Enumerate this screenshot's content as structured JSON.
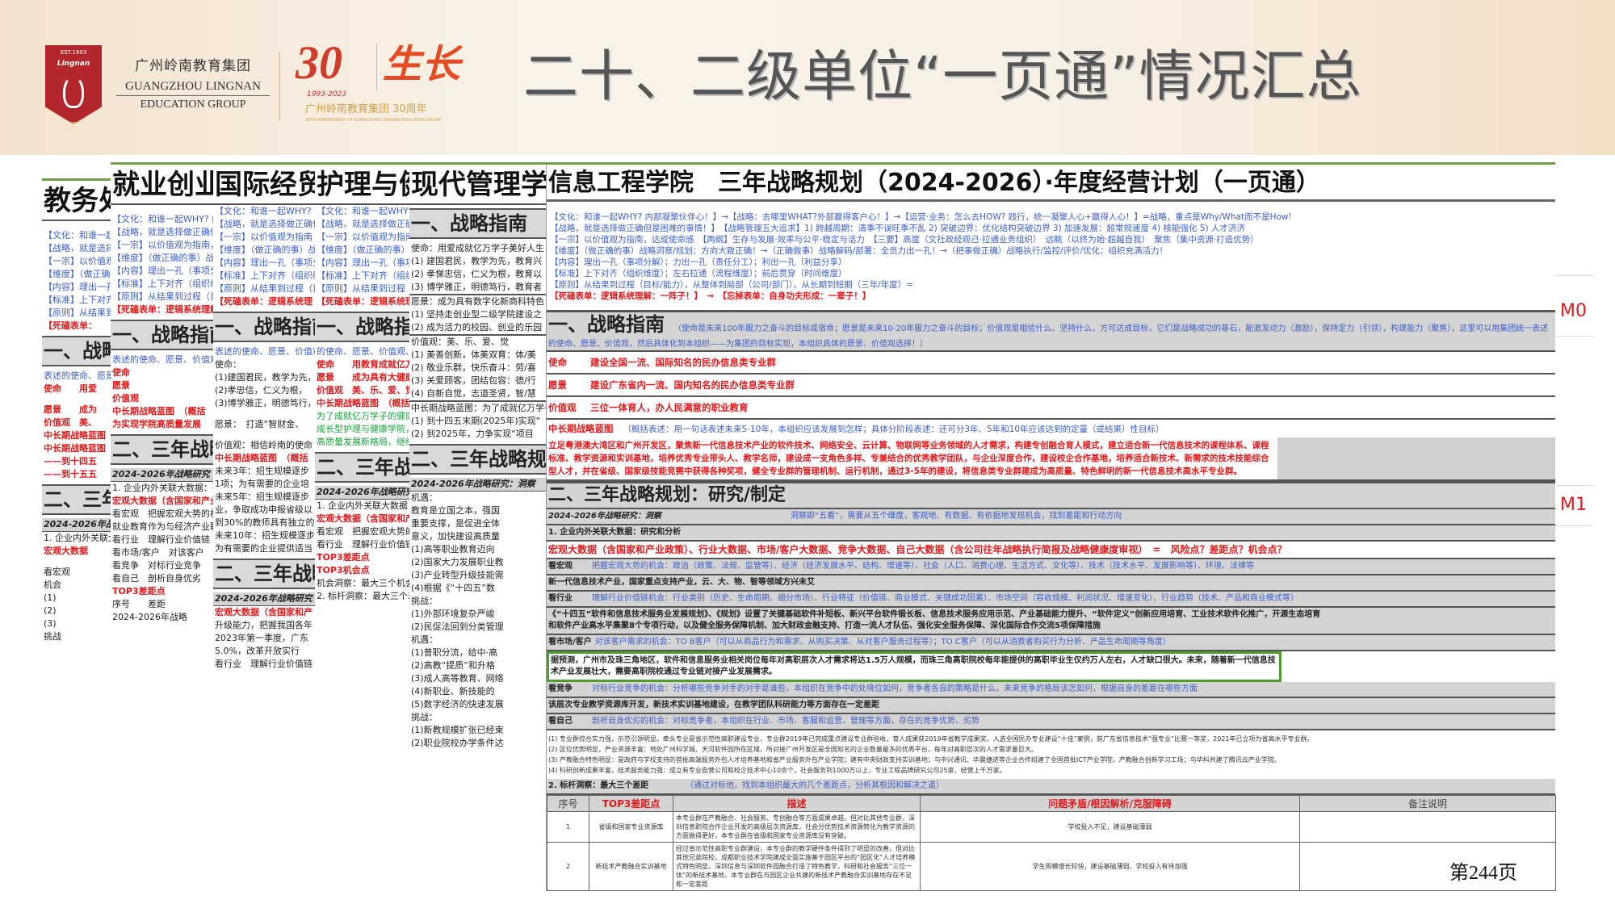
{
  "header": {
    "logo": {
      "est": "EST.1993",
      "name": "Lingnan"
    },
    "group_cn": "广州岭南教育集团",
    "group_en1": "GUANGZHOU LINGNAN",
    "group_en2": "EDUCATION GROUP",
    "anniv": {
      "num": "30",
      "years": "1993-2023",
      "glyph": "生长",
      "caption": "广州岭南教育集团 30周年",
      "caption_en": "30TH ANNIVERSARY OF GUANGZHOU LINGNAN EDUCATION GROUP"
    },
    "title": "二十、二级单位“一页通”情况汇总",
    "colors": {
      "brand_red": "#b3262b",
      "gold": "#c9a24f",
      "title_gray": "#555555"
    }
  },
  "panels": [
    {
      "title": "教务处",
      "lines": [
        {
          "c": "gap",
          "t": ""
        },
        {
          "c": "blue",
          "t": "【文化：和谁一起WHY?"
        },
        {
          "c": "blue",
          "t": "【战略，就是选择做正确"
        },
        {
          "c": "blue",
          "t": "【一宗】以价值观为指南"
        },
        {
          "c": "blue",
          "t": "【维度】（做正确的事）"
        },
        {
          "c": "blue",
          "t": "【内容】理出一孔"
        },
        {
          "c": "blue",
          "t": "【标准】上下对齐"
        },
        {
          "c": "blue",
          "t": "【原则】从结果到过程"
        },
        {
          "c": "red",
          "t": "【死磕表单："
        },
        {
          "c": "head",
          "t": "一、战略指南"
        },
        {
          "c": "blue",
          "t": "表述的使命、愿景"
        },
        {
          "c": "red",
          "t": "使命　　用爱"
        },
        {
          "c": "gap",
          "t": ""
        },
        {
          "c": "red",
          "t": "愿景　　成为"
        },
        {
          "c": "red",
          "t": "价值观　美、"
        },
        {
          "c": "red",
          "t": "中长期战略蓝图"
        },
        {
          "c": "red",
          "t": "中长期战略蓝图"
        },
        {
          "c": "red",
          "t": "——到十四五"
        },
        {
          "c": "red",
          "t": "——到十五五"
        },
        {
          "c": "head",
          "t": "二、三年战略"
        },
        {
          "c": "sub",
          "t": "2024-2026年战略研究"
        },
        {
          "c": "black",
          "t": "1. 企业内外关联大数据"
        },
        {
          "c": "red",
          "t": "宏观大数据"
        },
        {
          "c": "gap",
          "t": ""
        },
        {
          "c": "black",
          "t": "看宏观"
        },
        {
          "c": "black",
          "t": "机会"
        },
        {
          "c": "black",
          "t": "(1)"
        },
        {
          "c": "black",
          "t": "(2)"
        },
        {
          "c": "black",
          "t": "(3)"
        },
        {
          "c": "black",
          "t": "挑战"
        }
      ]
    },
    {
      "title": "就业创业学院",
      "lines": [
        {
          "c": "gap",
          "t": ""
        },
        {
          "c": "blue",
          "t": "【文化：和谁一起WHY? 内部凝聚伙伴心"
        },
        {
          "c": "blue",
          "t": "【战略，就是选择做正确但是困难的事"
        },
        {
          "c": "blue",
          "t": "【一宗】以价值观为指南，达成使命感"
        },
        {
          "c": "blue",
          "t": "【维度】（做正确的事）战略洞察"
        },
        {
          "c": "blue",
          "t": "【内容】理出一孔（事项分解）"
        },
        {
          "c": "blue",
          "t": "【标准】上下对齐（组织维度）"
        },
        {
          "c": "blue",
          "t": "【原则】从结果到过程（目标/能力）"
        },
        {
          "c": "red",
          "t": "【死磕表单：逻辑系统理解"
        },
        {
          "c": "head",
          "t": "一、战略指南"
        },
        {
          "c": "blue",
          "t": "表述的使命、愿景、价值观"
        },
        {
          "c": "red",
          "t": "使命"
        },
        {
          "c": "red",
          "t": "愿景"
        },
        {
          "c": "red",
          "t": "价值观"
        },
        {
          "c": "red",
          "t": "中长期战略蓝图　（概括"
        },
        {
          "c": "red",
          "t": "为实现学院高质量发展"
        },
        {
          "c": "head",
          "t": "二、三年战略"
        },
        {
          "c": "sub",
          "t": "2024-2026年战略研究"
        },
        {
          "c": "black",
          "t": "1. 企业内外关联大数据：研究"
        },
        {
          "c": "red",
          "t": "宏观大数据（含国家和产业"
        },
        {
          "c": "black",
          "t": "看宏观　把握宏观大势的机会"
        },
        {
          "c": "black",
          "t": "就业教育作为与经济产业联合"
        },
        {
          "c": "black",
          "t": "看行业　理解行业价值链"
        },
        {
          "c": "black",
          "t": "看市场/客户　对该客户"
        },
        {
          "c": "black",
          "t": "看竞争　对标行业竞争"
        },
        {
          "c": "black",
          "t": "看自己　剖析自身优劣"
        },
        {
          "c": "red",
          "t": "TOP3差距点"
        },
        {
          "c": "black",
          "t": "序号　　差距"
        },
        {
          "c": "black",
          "t": "2024-2026年战略"
        }
      ]
    },
    {
      "title": "国际经贸学院",
      "lines": [
        {
          "c": "blue",
          "t": "【文化：和谁一起WHY? 内"
        },
        {
          "c": "blue",
          "t": "【战略，就是选择做正确但"
        },
        {
          "c": "blue",
          "t": "【一宗】以价值观为指南"
        },
        {
          "c": "blue",
          "t": "【维度】（做正确的事）战"
        },
        {
          "c": "blue",
          "t": "【内容】理出一孔（事项分"
        },
        {
          "c": "blue",
          "t": "【标准】上下对齐（组织维"
        },
        {
          "c": "blue",
          "t": "【原则】从结果到过程（目"
        },
        {
          "c": "red",
          "t": "【死磕表单：逻辑系统理"
        },
        {
          "c": "head",
          "t": "一、战略指南"
        },
        {
          "c": "blue",
          "t": "表述的使命、愿景、价值观"
        },
        {
          "c": "black",
          "t": "使命："
        },
        {
          "c": "black",
          "t": "(1)建国君民，教学为先，"
        },
        {
          "c": "black",
          "t": "(2)孝忠信，仁义为根，"
        },
        {
          "c": "black",
          "t": "(3)博学雅正，明德笃行，"
        },
        {
          "c": "gap",
          "t": ""
        },
        {
          "c": "black",
          "t": "愿景：　打造“智财金、"
        },
        {
          "c": "gap",
          "t": ""
        },
        {
          "c": "black",
          "t": "价值观：相信岭南的使命"
        },
        {
          "c": "red",
          "t": "中长期战略蓝图　（概括"
        },
        {
          "c": "black",
          "t": "未来3年：招生规模逐步"
        },
        {
          "c": "black",
          "t": "1项；为有需要的企业培"
        },
        {
          "c": "black",
          "t": "未来5年：招生规模逐步"
        },
        {
          "c": "black",
          "t": "业，争取成功申报省级以"
        },
        {
          "c": "black",
          "t": "到30%的教师具有独立的"
        },
        {
          "c": "black",
          "t": "未来10年：招生规模逐步"
        },
        {
          "c": "black",
          "t": "为有需要的企业提供适当"
        },
        {
          "c": "head",
          "t": "二、三年战略"
        },
        {
          "c": "sub",
          "t": "2024-2026年战略研究"
        },
        {
          "c": "red",
          "t": "宏观大数据（含国家和产"
        },
        {
          "c": "black",
          "t": "升级能力，把握我国各年"
        },
        {
          "c": "black",
          "t": "2023年第一季度，广东"
        },
        {
          "c": "black",
          "t": "5.0%，改革开放实行"
        },
        {
          "c": "black",
          "t": "看行业　理解行业价值链"
        }
      ]
    },
    {
      "title": "护理与健康学院",
      "lines": [
        {
          "c": "blue",
          "t": "【文化：和谁一起WHY? 内部凝聚"
        },
        {
          "c": "blue",
          "t": "【战略，就是选择做正确但是困难"
        },
        {
          "c": "blue",
          "t": "【一宗】以价值观为指南，达成使命"
        },
        {
          "c": "blue",
          "t": "【维度】（做正确的事）战略洞察"
        },
        {
          "c": "blue",
          "t": "【内容】理出一孔（事项分解）"
        },
        {
          "c": "blue",
          "t": "【标准】上下对齐（组织维度）"
        },
        {
          "c": "blue",
          "t": "【原则】从结果到过程（目标/能力）"
        },
        {
          "c": "red",
          "t": "【死磕表单：逻辑系统理解"
        },
        {
          "c": "head",
          "t": "一、战略指南"
        },
        {
          "c": "blue",
          "t": "的使命、愿景、价值观、然后具体"
        },
        {
          "c": "red",
          "t": "使命　　用教育成就亿万学子"
        },
        {
          "c": "red",
          "t": "愿景　　成为具有大健康特色"
        },
        {
          "c": "red",
          "t": "价值观　美、乐、爱、觉"
        },
        {
          "c": "red",
          "t": "中长期战略蓝图　（概括表述"
        },
        {
          "c": "green",
          "t": "为了成就亿万学子的健康人生"
        },
        {
          "c": "green",
          "t": "成长型护理与健康学院，到十"
        },
        {
          "c": "green",
          "t": "高质量发展新格局，继续扩大"
        },
        {
          "c": "head",
          "t": "二、三年战略规划"
        },
        {
          "c": "sub",
          "t": "2024-2026年战略研究：洞察"
        },
        {
          "c": "black",
          "t": "1. 企业内外关联大数据：研究和分析"
        },
        {
          "c": "red",
          "t": "宏观大数据（含国家和产业政策"
        },
        {
          "c": "black",
          "t": "看宏观　把握宏观大势的机会"
        },
        {
          "c": "black",
          "t": "看行业　理解行业价值链"
        },
        {
          "c": "red",
          "t": "TOP3差距点"
        },
        {
          "c": "red",
          "t": "TOP3机会点"
        },
        {
          "c": "black",
          "t": "机会洞察：最大三个机会"
        },
        {
          "c": "black",
          "t": "2. 标杆洞察：最大三个差距"
        }
      ]
    },
    {
      "title": "现代管理学院",
      "lines": [
        {
          "c": "head",
          "t": "一、战略指南"
        },
        {
          "c": "black",
          "t": "使命：用爱成就亿万学子美好人生"
        },
        {
          "c": "black",
          "t": "(1) 建国君民，教学为先，教育兴"
        },
        {
          "c": "black",
          "t": "(2) 孝悌忠信，仁义为根，教育以"
        },
        {
          "c": "black",
          "t": "(3) 博学雅正，明德笃行，教育者"
        },
        {
          "c": "rule",
          "t": ""
        },
        {
          "c": "black",
          "t": "愿景：成为具有数字化新商科特色"
        },
        {
          "c": "black",
          "t": "(1) 坚持走创业型二级学院建设之"
        },
        {
          "c": "black",
          "t": "(2) 成为活力的校园、创业的乐园"
        },
        {
          "c": "rule",
          "t": ""
        },
        {
          "c": "black",
          "t": "价值观：美、乐、爱、觉"
        },
        {
          "c": "black",
          "t": "(1) 美善创新，体美双育：体/美"
        },
        {
          "c": "black",
          "t": "(2) 敬业乐群，快乐奋斗：劳/喜"
        },
        {
          "c": "black",
          "t": "(3) 关爱顾客，团结包容：德/行"
        },
        {
          "c": "black",
          "t": "(4) 自新自觉，志道圣贤，智/慧"
        },
        {
          "c": "rule",
          "t": ""
        },
        {
          "c": "black",
          "t": "中长期战略蓝图：为了成就亿万学子"
        },
        {
          "c": "black",
          "t": "(1) 到十四五末期(2025年)实现“"
        },
        {
          "c": "black",
          "t": "(2) 到2025年，力争实现“项目"
        },
        {
          "c": "head",
          "t": "二、三年战略规划"
        },
        {
          "c": "sub",
          "t": "2024-2026年战略研究：洞察"
        },
        {
          "c": "black",
          "t": "机遇："
        },
        {
          "c": "black",
          "t": "教育是立国之本，强国"
        },
        {
          "c": "black",
          "t": "重要支撑，是促进全体"
        },
        {
          "c": "black",
          "t": "意义，加快建设高质量"
        },
        {
          "c": "black",
          "t": "(1)高等职业教育迈向"
        },
        {
          "c": "black",
          "t": "(2)国家大力发展职业教"
        },
        {
          "c": "black",
          "t": "(3)产业转型升级技能需"
        },
        {
          "c": "black",
          "t": "(4)根据《“十四五”数"
        },
        {
          "c": "black",
          "t": "挑战："
        },
        {
          "c": "black",
          "t": "(1)外部环境复杂严峻"
        },
        {
          "c": "black",
          "t": "(2)民促法回到分类管理"
        },
        {
          "c": "black",
          "t": "机遇："
        },
        {
          "c": "black",
          "t": "(1)普职分流，给中·高"
        },
        {
          "c": "black",
          "t": "(2)高教“提质”和升格"
        },
        {
          "c": "black",
          "t": "(3)成人高等教育、网络"
        },
        {
          "c": "black",
          "t": "(4)新职业、新技能的"
        },
        {
          "c": "black",
          "t": "(5)数字经济的快速发展"
        },
        {
          "c": "black",
          "t": "挑战："
        },
        {
          "c": "black",
          "t": "(1)新教规模扩张已经束"
        },
        {
          "c": "black",
          "t": "(2)职业院校办学条件达"
        }
      ]
    }
  ],
  "doc": {
    "title": "信息工程学院　三年战略规划（2024-2026）·年度经营计划（一页通）",
    "preface": [
      {
        "c": "blue",
        "t": "【文化：和谁一起WHY? 内部凝聚伙伴心！】→【战略：去哪里WHAT?外部赢得客户心！】→【运营·业务：怎么去HOW? 践行，统一凝聚人心+赢得人心！】=战略，重点是Why/What而不是How!"
      },
      {
        "c": "blue",
        "t": "【战略，就是选择做正确但是困难的事情！】　【战略管理五大追求】1) 跨越周期：清季不误旺季不乱 2) 突破边界：优化结构突破边界 3) 加速发展：超常规速度 4) 核能强化 5) 人才济济"
      },
      {
        "c": "blue",
        "t": "【一宗】以价值观为指南，达成使命感　【两纲】生存与发展·效率与公平·稳定与活力　【三要】高度（文社政经观己·拉通业务组织）　远眺（以终为始·超越自我）　聚焦（集中资源·打造优势）"
      },
      {
        "c": "blue",
        "t": "【维度】（做正确的事）战略洞察/规划：方向大致正确！→（正确做事）战略解码/部署：全员力出一孔！→（把事做正确）战略执行/监控/评价/优化：组织充满活力！"
      },
      {
        "c": "blue",
        "t": "【内容】理出一孔（事项分解）；力出一孔（责任分工）；利出一孔（利益分享）"
      },
      {
        "c": "blue",
        "t": "【标准】上下对齐（组织维度）；左右拉通（流程维度）；前后贯穿（时间维度）"
      },
      {
        "c": "blue",
        "t": "【原则】从结果到过程（目标/能力），从整体到局部（公司/部门），从长期到短期（三年/年度）="
      },
      {
        "c": "red",
        "t": "【死磕表单：逻辑系统理解：一阵子！】　→　【忘掉表单：自身功夫形成：一辈子！】"
      }
    ],
    "s1": {
      "heading": "一、战略指南",
      "note": "（使命是未来100年服力之奋斗的目标或宿命；愿景是未来10-20年服力之奋斗的目标；价值观是相信什么、坚持什么，方可达成目标，它们是战略成功的基石，能激发动力（激励），保持定力（引领），构建能力（聚焦），这里可以用集团统一表述的使命、愿景、价值观，然后具体化到本组织——为集团的目标实现，本组织具体的愿景、价值观选择！）"
    },
    "mission": {
      "k": "使命",
      "v": "建设全国一流、国际知名的民办信息类专业群"
    },
    "vision": {
      "k": "愿景",
      "v": "建设广东省内一流、国内知名的民办信息类专业群"
    },
    "values": {
      "k": "价值观",
      "v": "三位一体育人，办人民满意的职业教育"
    },
    "blueprint": {
      "k": "中长期战略蓝图",
      "note": "（概括表述：用一句话表述未来5-10年，本组织应该发展到怎样；具体分阶段表述：还可分3年、5年和10年应该达到的定量（或结果）性目标）"
    },
    "blueprint_text": "立足粤港澳大湾区和广州开发区，聚焦新一代信息技术产业的软件技术、网络安全、云计算、物联网等业务领域的人才需求，构建专创融合育人模式，建立适合新一代信息技术的课程体系、课程标准、教学资源和实训基地，培养优秀专业带头人、教学名师，建设成一支角色多样、专兼结合的优秀教学团队，与企业深度合作，建设校企合作基地，培养适合新技术、新需求的技术技能综合型人才，并在省级、国家级技能竞赛中获得各种奖项，健全专业群的管理机制、运行机制，通过3-5年的建设，将信息类专业群建成为高质量、特色鲜明的新一代信息技术高水平专业群。",
    "s2": {
      "heading": "二、三年战略规划：研究/制定"
    },
    "insight": {
      "k": "2024-2026年战略研究：洞察",
      "note": "洞察即“五看”，需要从五个维度，客观地、有数据、有依据地发现机会，找到差距和行动方向"
    },
    "bigdata": "1. 企业内外关联大数据：研究和分析",
    "macro_title": "宏观大数据（含国家和产业政策）、行业大数据、市场/客户大数据、竞争大数据、自己大数据（含公司往年战略执行简报及战略健康度审视）　=　风险点？差距点？机会点？",
    "rows": [
      {
        "k": "看宏观",
        "n": "把握宏观大势的机会：政治（政策、法规、监管等）、经济（经济发展水平、结构、增速等）、社会（人口、消费心理、生活方式、文化等）、技术（技术水平、发展影响等）、环境、法律等"
      },
      {
        "k": "",
        "n": "",
        "d": "新一代信息技术产业，国家重点支持产业，云、大、物、智等领域方兴未艾"
      },
      {
        "k": "看行业",
        "n": "理解行业价值链机会：行业类别（历史、生命周期、细分市场）、行业特征（价值链、商业模式、关键成功因素）、市场空间（容收规模、利润状况、增速变化）、行业趋势（技术、产品和商业模式等）"
      },
      {
        "k": "",
        "n": "",
        "d": "《“十四五”软件和信息技术服务业发展规划》、《规划》设置了关键基础软件补短板、新兴平台软件锻长板、信息技术服务应用示范、产业基础能力提升、“软件定义”创新应用培育、工业技术软件化推广，开源生态培育和软件产业高水平集聚8个专项行动，以及健全服务保障机制、加大财政金融支持、打造一流人才队伍、强化安全服务保障、深化国际合作交流5项保障措施"
      },
      {
        "k": "看市场/客户",
        "n": "对该客户需求的机会：TO B客户（可以从商品行为和需求、从购买决策、从对客户服务过程等）；TO C客户（可以从消费者购买行为分析、产品生命周期等角度）"
      }
    ],
    "green_text": "据预测，广州市及珠三角地区，软件和信息服务业相关岗位每年对高职层次人才需求将达1.5万人规模，而珠三角高职院校每年能提供的高职毕业生仅约万人左右，人才缺口很大。未来，随着新一代信息技术产业发展壮大，需要高职院校通过专业链对接产业发展需求。",
    "rows2": [
      {
        "k": "看竞争",
        "n": "对标行业竞争的机会：分析哪些竞争对手的对手是谁些，本组织在竞争中的处境位如何，竞争者各自的策略是什么，未来竞争的格局该怎如何，根据自身的差距在哪些方面"
      },
      {
        "k": "",
        "n": "",
        "d": "该层次专业教学资源库开发，新技术实训基地建设，在教学团队科研能力等方面存在一定差距"
      },
      {
        "k": "看自己",
        "n": "剖析自身优劣的机会：对标竞争者，本组织在行业、市场、客服和运营、管理等方面，存在的竞争优势、劣势"
      }
    ],
    "numbered": [
      "(1) 专业群综合实力强，示范引领明显。牵头专业是省示范性高职建设专业，专业群2019年已完成重点建设专业群验收，育人成果获2019年省教学成果奖，入选全国民办专业建设“十佳”案例，获广东省信息技术“强专业”比赛一等奖，2021年已立项为省高水平专业群。",
      "(2) 区位优势明显，产业资源丰富：地处广州科学城、天河软件园所在区域，所对接广州开发区是全国知名的企业数量最多的优秀平台，每年对高职层次的人才需求量巨大。",
      "(3) 产教融合特色明显：是政府与学校支持的首批高端服务外包人才培养基地和省产业服务外包产业学院；建有中央财政支持实训基地；与中兴通讯、华晨捷进等企业合作组建了全国首批ICT产业学院，产教融合创新学习工场；与华科共建了腾讯云产业学院。",
      "(4) 科研创新成果丰富，技术服务能力强：成立有专业自营公司和校企技术中心10余个，社会服务到1000万以上，专业工程品牌研究公司25家，经营上千万家。"
    ],
    "bench": {
      "k": "2. 标杆洞察：最大三个差距",
      "note": "（通过对标他，找到本组织最大的几个差距点，分析其根因和解决之道）"
    },
    "table": {
      "headers": [
        "序号",
        "TOP3差距点",
        "描述",
        "问题矛盾/根因解析/克服障碍",
        "备注说明"
      ],
      "rows": [
        [
          "1",
          "省级和国家专业资源库",
          "本专业群在产教融合、社会服务、专创融合等方面成果卓越，但对比其他专业群，深圳信息职院合作企业开发的高级层次资源库，社会分优势技术资源转化为教学资源的方面做得更好，本专业群在省级和国家专业资源库没有突破。",
          "学校投入不足，建设基础薄弱",
          ""
        ],
        [
          "2",
          "新技术产教融合实训基地",
          "经过省示范性高职专业群建设，本专业群的教学硬件条件得到了明显的改善，但对比其他兄弟院校，成都职业技术学院建成全面实施基于园区平台的“园区化”人才培养模式特色明显，深圳信息与深圳软件园融合打造了特色教学，科研和社会服务“三位一体”的新技术基地，本专业群在与园区企业共建的新技术产教融合实训基地存在不足和一定差距",
          "学生规模增长较快，建设基础薄弱，学校投入有待加强",
          ""
        ]
      ]
    },
    "right_labels": [
      "M0",
      "M1"
    ],
    "page_number": "第244页"
  }
}
